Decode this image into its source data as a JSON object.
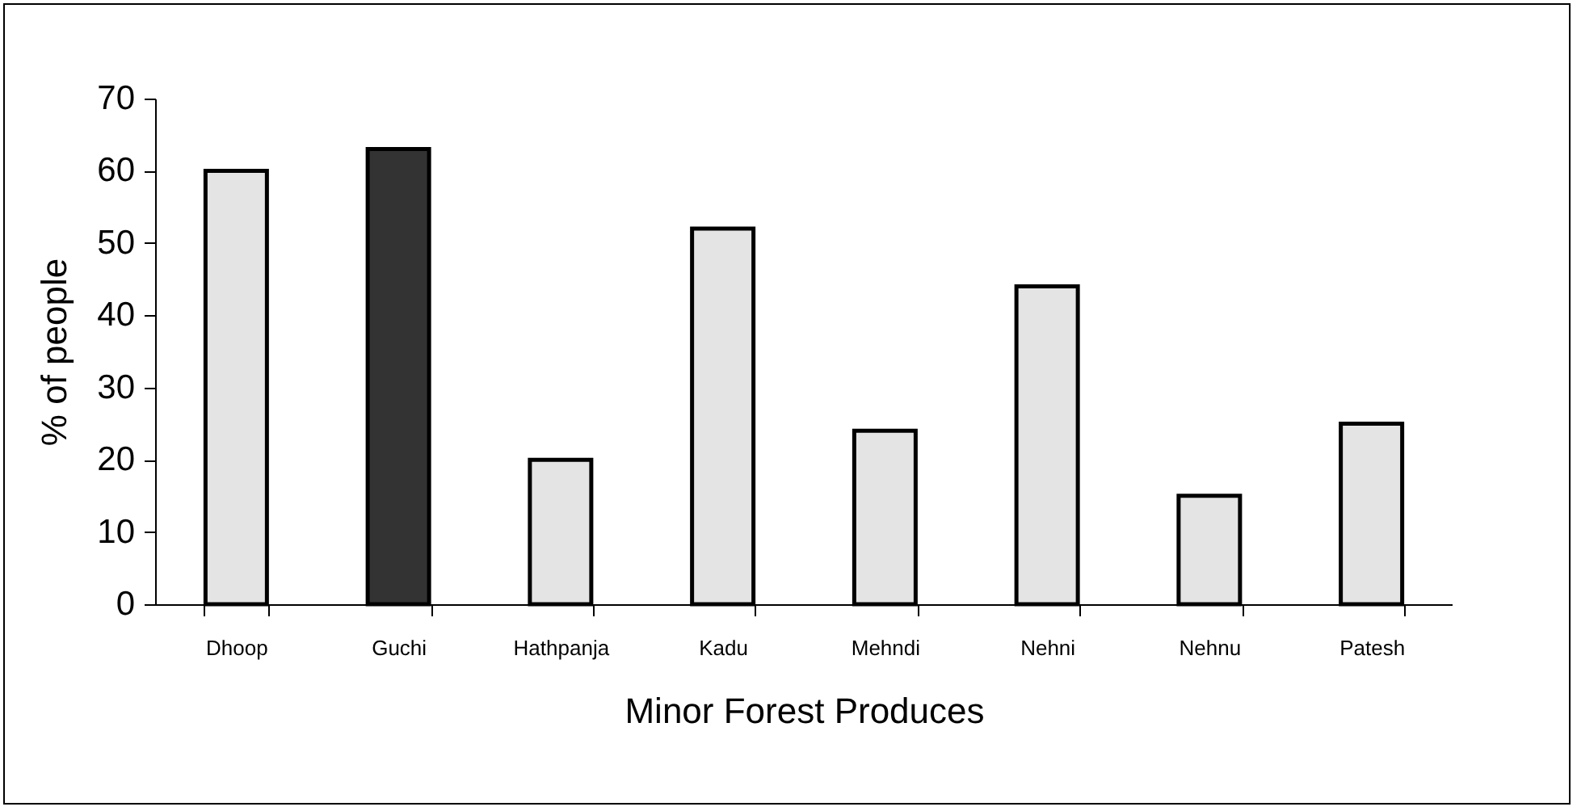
{
  "chart_data": {
    "type": "bar",
    "xlabel": "Minor Forest Produces",
    "ylabel": "% of people",
    "categories": [
      "Dhoop",
      "Guchi",
      "Hathpanja",
      "Kadu",
      "Mehndi",
      "Nehni",
      "Nehnu",
      "Patesh"
    ],
    "values": [
      60,
      63,
      20,
      52,
      24,
      44,
      15,
      25
    ],
    "colors": [
      "#e4e4e4",
      "#333333",
      "#e4e4e4",
      "#e4e4e4",
      "#e4e4e4",
      "#e4e4e4",
      "#e4e4e4",
      "#e4e4e4"
    ],
    "ylim": [
      0,
      70
    ],
    "yticks": [
      0,
      10,
      20,
      30,
      40,
      50,
      60,
      70
    ],
    "grid": false
  }
}
